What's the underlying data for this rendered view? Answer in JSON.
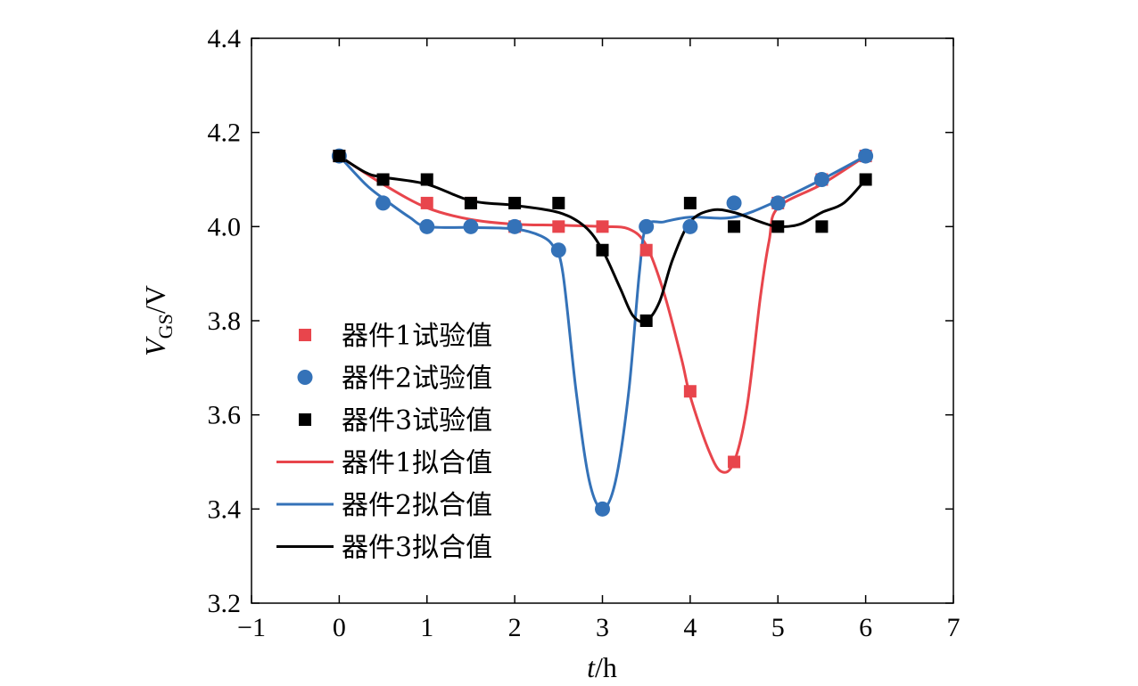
{
  "chart_data": {
    "type": "line",
    "xlabel_italic": "t",
    "xlabel_unit": "/h",
    "ylabel_main": "V",
    "ylabel_sub": "GS",
    "ylabel_unit": "/V",
    "xlim": [
      -1,
      7
    ],
    "ylim": [
      3.2,
      4.4
    ],
    "xticks": [
      -1,
      0,
      1,
      2,
      3,
      4,
      5,
      6,
      7
    ],
    "xtick_labels": [
      "−1",
      "0",
      "1",
      "2",
      "3",
      "4",
      "5",
      "6",
      "7"
    ],
    "yticks": [
      3.2,
      3.4,
      3.6,
      3.8,
      4.0,
      4.2,
      4.4
    ],
    "ytick_labels": [
      "3.2",
      "3.4",
      "3.6",
      "3.8",
      "4.0",
      "4.2",
      "4.4"
    ],
    "grid": false,
    "legend_position": "left-center",
    "series": [
      {
        "name": "器件1试验值",
        "kind": "scatter",
        "marker": "square",
        "color": "#e8454c",
        "x": [
          0,
          0.5,
          1,
          1.5,
          2,
          2.5,
          3,
          3.5,
          4,
          4.5,
          5,
          5.5,
          6
        ],
        "y": [
          4.15,
          4.1,
          4.05,
          4.05,
          4.0,
          4.0,
          4.0,
          3.95,
          3.65,
          3.5,
          4.05,
          4.1,
          4.15
        ]
      },
      {
        "name": "器件2试验值",
        "kind": "scatter",
        "marker": "circle",
        "color": "#3472b8",
        "x": [
          0,
          0.5,
          1,
          1.5,
          2,
          2.5,
          3,
          3.5,
          4,
          4.5,
          5,
          5.5,
          6
        ],
        "y": [
          4.15,
          4.05,
          4.0,
          4.0,
          4.0,
          3.95,
          3.4,
          4.0,
          4.0,
          4.05,
          4.05,
          4.1,
          4.15
        ]
      },
      {
        "name": "器件3试验值",
        "kind": "scatter",
        "marker": "square",
        "color": "#000000",
        "x": [
          0,
          0.5,
          1,
          1.5,
          2,
          2.5,
          3,
          3.5,
          4,
          4.5,
          5,
          5.5,
          6
        ],
        "y": [
          4.15,
          4.1,
          4.1,
          4.05,
          4.05,
          4.05,
          3.95,
          3.8,
          4.05,
          4.0,
          4.0,
          4.0,
          4.1
        ]
      },
      {
        "name": "器件1拟合值",
        "kind": "line",
        "color": "#e8454c",
        "x": [
          0,
          0.5,
          1,
          1.5,
          2,
          2.5,
          3,
          3.3,
          3.5,
          3.7,
          3.9,
          4.0,
          4.2,
          4.35,
          4.5,
          4.65,
          4.8,
          4.9,
          5,
          5.5,
          6
        ],
        "y": [
          4.15,
          4.09,
          4.04,
          4.015,
          4.005,
          4.003,
          4.0,
          3.995,
          3.96,
          3.86,
          3.72,
          3.64,
          3.53,
          3.48,
          3.5,
          3.62,
          3.85,
          3.97,
          4.04,
          4.09,
          4.15
        ]
      },
      {
        "name": "器件2拟合值",
        "kind": "line",
        "color": "#3472b8",
        "x": [
          0,
          0.3,
          0.5,
          0.8,
          1,
          1.5,
          2,
          2.3,
          2.45,
          2.55,
          2.7,
          2.85,
          3.0,
          3.15,
          3.3,
          3.42,
          3.5,
          3.7,
          4.0,
          4.5,
          5,
          5.5,
          6
        ],
        "y": [
          4.15,
          4.09,
          4.06,
          4.02,
          4.0,
          3.998,
          3.995,
          3.98,
          3.955,
          3.9,
          3.65,
          3.46,
          3.4,
          3.46,
          3.65,
          3.9,
          4.0,
          4.01,
          4.02,
          4.02,
          4.055,
          4.1,
          4.15
        ]
      },
      {
        "name": "器件3拟合值",
        "kind": "line",
        "color": "#000000",
        "x": [
          0,
          0.3,
          0.5,
          1,
          1.5,
          2,
          2.5,
          2.8,
          3.0,
          3.2,
          3.35,
          3.5,
          3.65,
          3.8,
          4.0,
          4.25,
          4.5,
          4.8,
          5.0,
          5.25,
          5.5,
          5.75,
          6
        ],
        "y": [
          4.15,
          4.115,
          4.105,
          4.09,
          4.055,
          4.045,
          4.03,
          4.0,
          3.95,
          3.87,
          3.81,
          3.8,
          3.84,
          3.93,
          4.01,
          4.035,
          4.03,
          4.01,
          4.0,
          4.005,
          4.03,
          4.05,
          4.1
        ]
      }
    ]
  }
}
